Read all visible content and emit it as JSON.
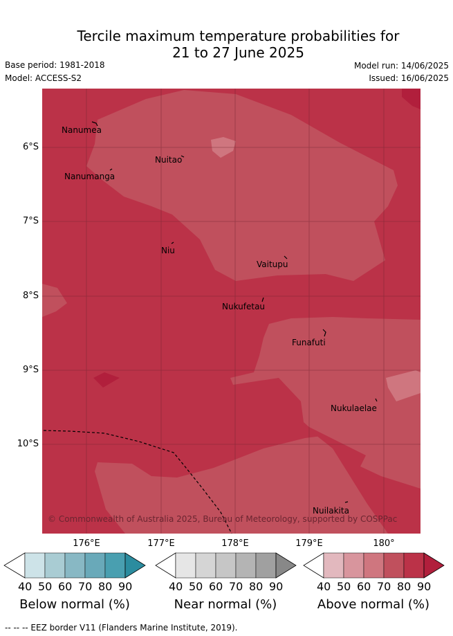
{
  "header": {
    "title_line1": "Tercile maximum temperature probabilities for",
    "title_line2": "21 to 27 June 2025",
    "base_period": "Base period: 1981-2018",
    "model": "Model: ACCESS-S2",
    "model_run": "Model run: 14/06/2025",
    "issued": "Issued: 16/06/2025"
  },
  "map": {
    "lat_labels": [
      "6°S",
      "7°S",
      "8°S",
      "9°S",
      "10°S"
    ],
    "lon_labels": [
      "176°E",
      "177°E",
      "178°E",
      "179°E",
      "180°"
    ],
    "places": [
      "Nanumea",
      "Nuitao",
      "Nanumanga",
      "Niu",
      "Vaitupu",
      "Nukufetau",
      "Funafuti",
      "Nukulaelae",
      "Nuilakita"
    ],
    "copyright": "© Commonwealth of Australia 2025, Bureau of Meteorology, supported by COSPPac",
    "colors": {
      "above_80": "#bb3248",
      "above_70": "#c0505d",
      "above_60": "#cf767f",
      "above_90": "#b11f3c"
    }
  },
  "colorbars": [
    {
      "title": "Below normal (%)",
      "ticks": [
        "40",
        "50",
        "60",
        "70",
        "80",
        "90"
      ],
      "colors": [
        "#ffffff",
        "#cde3e8",
        "#a9ccd3",
        "#88b8c4",
        "#69a9b9",
        "#499fb0",
        "#2b8c9f"
      ]
    },
    {
      "title": "Near normal (%)",
      "ticks": [
        "40",
        "50",
        "60",
        "70",
        "80",
        "90"
      ],
      "colors": [
        "#ffffff",
        "#e6e6e6",
        "#d5d5d5",
        "#c6c6c6",
        "#b4b4b4",
        "#a0a0a0",
        "#888888"
      ]
    },
    {
      "title": "Above normal (%)",
      "ticks": [
        "40",
        "50",
        "60",
        "70",
        "80",
        "90"
      ],
      "colors": [
        "#ffffff",
        "#e2b8be",
        "#d8959d",
        "#cf767f",
        "#c0505d",
        "#bb3248",
        "#b11f3c"
      ]
    }
  ],
  "footnote": "-- -- -- EEZ border V11 (Flanders Marine Institute, 2019)."
}
